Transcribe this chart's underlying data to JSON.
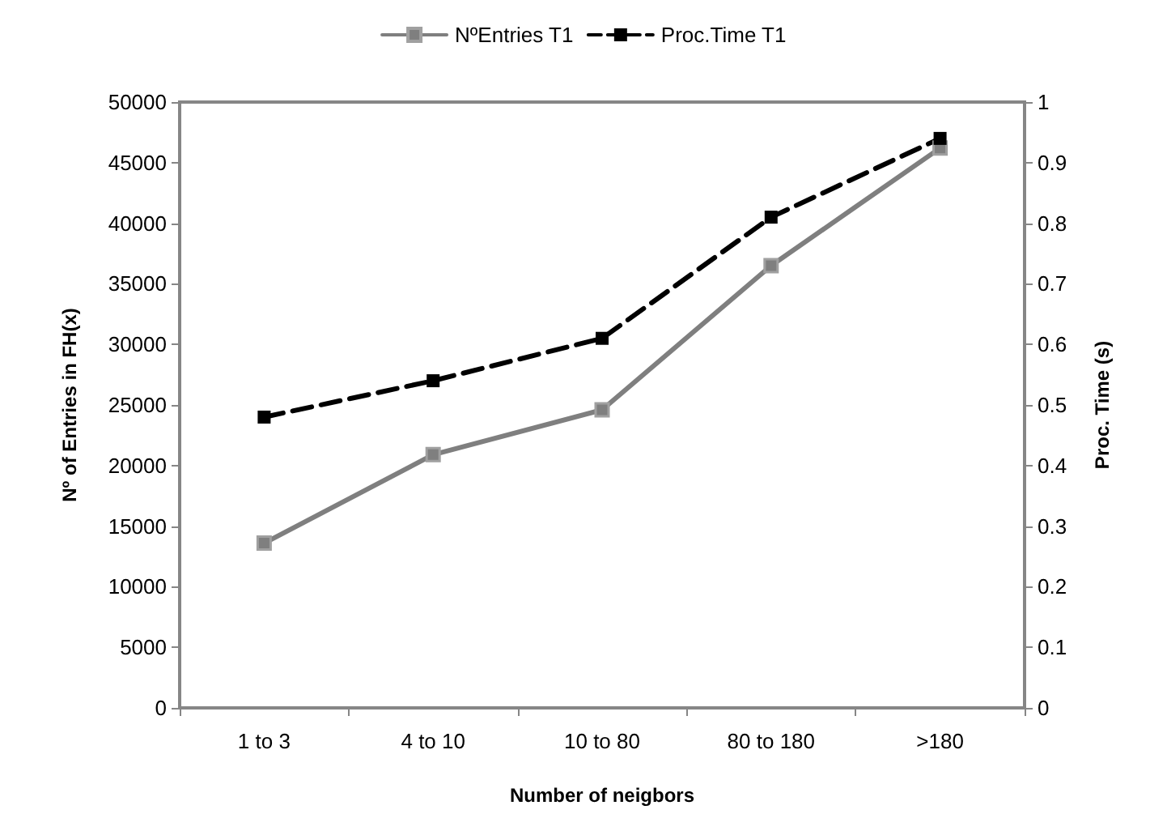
{
  "chart_data": {
    "type": "line",
    "xlabel": "Number of neigbors",
    "ylabel": "Nº of Entries in FH(x)",
    "y2label": "Proc. Time (s)",
    "categories": [
      "1 to 3",
      "4 to 10",
      "10 to 80",
      "80 to 180",
      ">180"
    ],
    "series": [
      {
        "name": "NºEntries T1",
        "color": "#7f7f7f",
        "values": [
          13600,
          20900,
          24600,
          36500,
          46200
        ],
        "line_style": "solid"
      },
      {
        "name": "Proc.Time T1",
        "color": "#000000",
        "values": [
          0.48,
          0.54,
          0.61,
          0.81,
          0.94
        ],
        "axis": "y2",
        "line_style": "dashed"
      }
    ],
    "ylim": [
      0,
      50000
    ],
    "yticks": [
      0,
      5000,
      10000,
      15000,
      20000,
      25000,
      30000,
      35000,
      40000,
      45000,
      50000
    ],
    "y2lim": [
      0,
      1
    ],
    "y2ticks": [
      0,
      0.1,
      0.2,
      0.3,
      0.4,
      0.5,
      0.6,
      0.7,
      0.8,
      0.9,
      1
    ],
    "grid": false,
    "legend": "top",
    "marker": "square"
  }
}
